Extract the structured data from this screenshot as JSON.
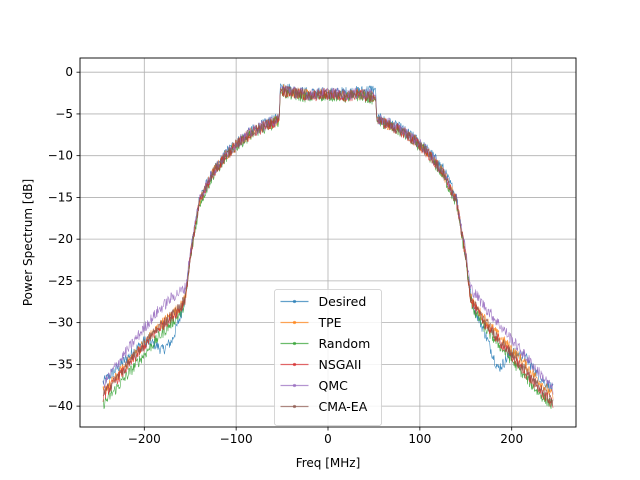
{
  "chart_data": {
    "type": "line",
    "title": "",
    "xlabel": "Freq [MHz]",
    "ylabel": "Power Spectrum [dB]",
    "xlim": [
      -270,
      270
    ],
    "ylim": [
      -42.5,
      1.7
    ],
    "xticks": [
      -200,
      -100,
      0,
      100,
      200
    ],
    "yticks": [
      0,
      -5,
      -10,
      -15,
      -20,
      -25,
      -30,
      -35,
      -40
    ],
    "xtick_labels": [
      "−200",
      "−100",
      "0",
      "100",
      "200"
    ],
    "ytick_labels": [
      "0",
      "−5",
      "−10",
      "−15",
      "−20",
      "−25",
      "−30",
      "−35",
      "−40"
    ],
    "grid": true,
    "legend_position": "bottom-center",
    "x_range": [
      -245,
      245
    ],
    "noise_db": 0.7,
    "series": [
      {
        "name": "Desired",
        "color": "#1f77b4",
        "points": [
          [
            -245,
            -37.2
          ],
          [
            -230,
            -35.5
          ],
          [
            -215,
            -33.8
          ],
          [
            -200,
            -32.2
          ],
          [
            -190,
            -32.5
          ],
          [
            -180,
            -33.3
          ],
          [
            -170,
            -32.2
          ],
          [
            -160,
            -29.0
          ],
          [
            -155,
            -26.8
          ],
          [
            -150,
            -22.0
          ],
          [
            -140,
            -15.0
          ],
          [
            -125,
            -12.0
          ],
          [
            -110,
            -9.5
          ],
          [
            -95,
            -8.0
          ],
          [
            -80,
            -6.8
          ],
          [
            -65,
            -6.0
          ],
          [
            -53,
            -5.5
          ],
          [
            -52,
            -1.5
          ],
          [
            -35,
            -2.3
          ],
          [
            -20,
            -2.5
          ],
          [
            -5,
            -2.5
          ],
          [
            5,
            -2.5
          ],
          [
            20,
            -2.4
          ],
          [
            35,
            -2.3
          ],
          [
            52,
            -2.0
          ],
          [
            53,
            -5.5
          ],
          [
            65,
            -6.0
          ],
          [
            80,
            -6.8
          ],
          [
            95,
            -8.0
          ],
          [
            110,
            -9.5
          ],
          [
            125,
            -11.5
          ],
          [
            140,
            -15.0
          ],
          [
            150,
            -22.0
          ],
          [
            155,
            -26.5
          ],
          [
            160,
            -28.5
          ],
          [
            170,
            -31.0
          ],
          [
            180,
            -34.0
          ],
          [
            185,
            -35.5
          ],
          [
            190,
            -35.0
          ],
          [
            200,
            -33.5
          ],
          [
            215,
            -34.2
          ],
          [
            230,
            -36.5
          ],
          [
            245,
            -38.0
          ]
        ]
      },
      {
        "name": "TPE",
        "color": "#ff7f0e",
        "points": [
          [
            -245,
            -38.3
          ],
          [
            -230,
            -36.5
          ],
          [
            -215,
            -34.3
          ],
          [
            -200,
            -32.5
          ],
          [
            -185,
            -30.5
          ],
          [
            -170,
            -29.0
          ],
          [
            -160,
            -28.0
          ],
          [
            -155,
            -26.8
          ],
          [
            -150,
            -22.0
          ],
          [
            -140,
            -15.5
          ],
          [
            -125,
            -12.0
          ],
          [
            -110,
            -9.8
          ],
          [
            -95,
            -8.2
          ],
          [
            -80,
            -7.0
          ],
          [
            -65,
            -6.2
          ],
          [
            -53,
            -5.6
          ],
          [
            -52,
            -2.0
          ],
          [
            -35,
            -2.5
          ],
          [
            -20,
            -2.8
          ],
          [
            -5,
            -2.6
          ],
          [
            5,
            -2.6
          ],
          [
            20,
            -2.8
          ],
          [
            35,
            -2.6
          ],
          [
            52,
            -3.0
          ],
          [
            53,
            -5.6
          ],
          [
            65,
            -6.2
          ],
          [
            80,
            -7.0
          ],
          [
            95,
            -8.2
          ],
          [
            110,
            -9.8
          ],
          [
            125,
            -12.0
          ],
          [
            140,
            -15.5
          ],
          [
            150,
            -22.0
          ],
          [
            155,
            -26.8
          ],
          [
            160,
            -28.0
          ],
          [
            170,
            -29.5
          ],
          [
            185,
            -31.5
          ],
          [
            200,
            -33.2
          ],
          [
            215,
            -35.0
          ],
          [
            230,
            -37.0
          ],
          [
            245,
            -38.8
          ]
        ]
      },
      {
        "name": "Random",
        "color": "#2ca02c",
        "points": [
          [
            -245,
            -39.8
          ],
          [
            -230,
            -37.8
          ],
          [
            -215,
            -35.8
          ],
          [
            -200,
            -33.8
          ],
          [
            -185,
            -31.8
          ],
          [
            -170,
            -30.0
          ],
          [
            -160,
            -28.8
          ],
          [
            -155,
            -27.2
          ],
          [
            -150,
            -22.5
          ],
          [
            -140,
            -15.8
          ],
          [
            -125,
            -12.3
          ],
          [
            -110,
            -10.0
          ],
          [
            -95,
            -8.4
          ],
          [
            -80,
            -7.2
          ],
          [
            -65,
            -6.4
          ],
          [
            -53,
            -5.8
          ],
          [
            -52,
            -2.4
          ],
          [
            -35,
            -2.8
          ],
          [
            -20,
            -3.0
          ],
          [
            -5,
            -2.8
          ],
          [
            5,
            -2.8
          ],
          [
            20,
            -3.0
          ],
          [
            35,
            -2.8
          ],
          [
            52,
            -3.3
          ],
          [
            53,
            -5.8
          ],
          [
            65,
            -6.4
          ],
          [
            80,
            -7.2
          ],
          [
            95,
            -8.4
          ],
          [
            110,
            -10.0
          ],
          [
            125,
            -12.3
          ],
          [
            140,
            -15.8
          ],
          [
            150,
            -22.5
          ],
          [
            155,
            -27.2
          ],
          [
            160,
            -28.8
          ],
          [
            170,
            -30.5
          ],
          [
            185,
            -32.5
          ],
          [
            200,
            -34.5
          ],
          [
            215,
            -36.5
          ],
          [
            230,
            -38.5
          ],
          [
            245,
            -40.0
          ]
        ]
      },
      {
        "name": "NSGAII",
        "color": "#d62728",
        "points": [
          [
            -245,
            -38.8
          ],
          [
            -230,
            -36.8
          ],
          [
            -215,
            -34.8
          ],
          [
            -200,
            -32.8
          ],
          [
            -185,
            -30.8
          ],
          [
            -170,
            -29.3
          ],
          [
            -160,
            -28.2
          ],
          [
            -155,
            -27.0
          ],
          [
            -150,
            -22.2
          ],
          [
            -140,
            -15.6
          ],
          [
            -125,
            -12.1
          ],
          [
            -110,
            -9.9
          ],
          [
            -95,
            -8.3
          ],
          [
            -80,
            -7.1
          ],
          [
            -65,
            -6.3
          ],
          [
            -53,
            -5.7
          ],
          [
            -52,
            -2.2
          ],
          [
            -35,
            -2.6
          ],
          [
            -20,
            -2.9
          ],
          [
            -5,
            -2.7
          ],
          [
            5,
            -2.7
          ],
          [
            20,
            -2.9
          ],
          [
            35,
            -2.7
          ],
          [
            52,
            -3.2
          ],
          [
            53,
            -5.7
          ],
          [
            65,
            -6.3
          ],
          [
            80,
            -7.1
          ],
          [
            95,
            -8.3
          ],
          [
            110,
            -9.9
          ],
          [
            125,
            -12.1
          ],
          [
            140,
            -15.6
          ],
          [
            150,
            -22.2
          ],
          [
            155,
            -27.0
          ],
          [
            160,
            -28.2
          ],
          [
            170,
            -30.0
          ],
          [
            185,
            -32.0
          ],
          [
            200,
            -34.0
          ],
          [
            215,
            -36.0
          ],
          [
            230,
            -38.0
          ],
          [
            245,
            -39.8
          ]
        ]
      },
      {
        "name": "QMC",
        "color": "#9467bd",
        "points": [
          [
            -245,
            -37.5
          ],
          [
            -230,
            -35.0
          ],
          [
            -215,
            -32.8
          ],
          [
            -200,
            -30.6
          ],
          [
            -185,
            -28.6
          ],
          [
            -170,
            -27.0
          ],
          [
            -160,
            -26.2
          ],
          [
            -155,
            -25.8
          ],
          [
            -150,
            -21.5
          ],
          [
            -140,
            -15.2
          ],
          [
            -125,
            -11.9
          ],
          [
            -110,
            -9.7
          ],
          [
            -95,
            -8.1
          ],
          [
            -80,
            -6.9
          ],
          [
            -65,
            -6.1
          ],
          [
            -53,
            -5.5
          ],
          [
            -52,
            -1.8
          ],
          [
            -35,
            -2.4
          ],
          [
            -20,
            -2.7
          ],
          [
            -5,
            -2.5
          ],
          [
            5,
            -2.5
          ],
          [
            20,
            -2.7
          ],
          [
            35,
            -2.5
          ],
          [
            52,
            -2.8
          ],
          [
            53,
            -5.5
          ],
          [
            65,
            -6.1
          ],
          [
            80,
            -6.9
          ],
          [
            95,
            -8.1
          ],
          [
            110,
            -9.7
          ],
          [
            125,
            -11.9
          ],
          [
            140,
            -15.2
          ],
          [
            150,
            -21.5
          ],
          [
            155,
            -25.8
          ],
          [
            160,
            -26.5
          ],
          [
            170,
            -28.0
          ],
          [
            185,
            -30.0
          ],
          [
            200,
            -32.0
          ],
          [
            215,
            -34.0
          ],
          [
            230,
            -36.0
          ],
          [
            245,
            -38.0
          ]
        ]
      },
      {
        "name": "CMA-EA",
        "color": "#8c564b",
        "points": [
          [
            -245,
            -38.6
          ],
          [
            -230,
            -36.6
          ],
          [
            -215,
            -34.6
          ],
          [
            -200,
            -32.6
          ],
          [
            -185,
            -30.6
          ],
          [
            -170,
            -29.1
          ],
          [
            -160,
            -28.0
          ],
          [
            -155,
            -26.9
          ],
          [
            -150,
            -22.1
          ],
          [
            -140,
            -15.5
          ],
          [
            -125,
            -12.0
          ],
          [
            -110,
            -9.8
          ],
          [
            -95,
            -8.2
          ],
          [
            -80,
            -7.0
          ],
          [
            -65,
            -6.2
          ],
          [
            -53,
            -5.6
          ],
          [
            -52,
            -2.1
          ],
          [
            -35,
            -2.5
          ],
          [
            -20,
            -2.8
          ],
          [
            -5,
            -2.6
          ],
          [
            5,
            -2.6
          ],
          [
            20,
            -2.8
          ],
          [
            35,
            -2.6
          ],
          [
            52,
            -3.1
          ],
          [
            53,
            -5.6
          ],
          [
            65,
            -6.2
          ],
          [
            80,
            -7.0
          ],
          [
            95,
            -8.2
          ],
          [
            110,
            -9.8
          ],
          [
            125,
            -12.0
          ],
          [
            140,
            -15.5
          ],
          [
            150,
            -22.1
          ],
          [
            155,
            -26.9
          ],
          [
            160,
            -28.0
          ],
          [
            170,
            -29.8
          ],
          [
            185,
            -31.8
          ],
          [
            200,
            -33.8
          ],
          [
            215,
            -35.8
          ],
          [
            230,
            -37.8
          ],
          [
            245,
            -39.5
          ]
        ]
      }
    ]
  }
}
